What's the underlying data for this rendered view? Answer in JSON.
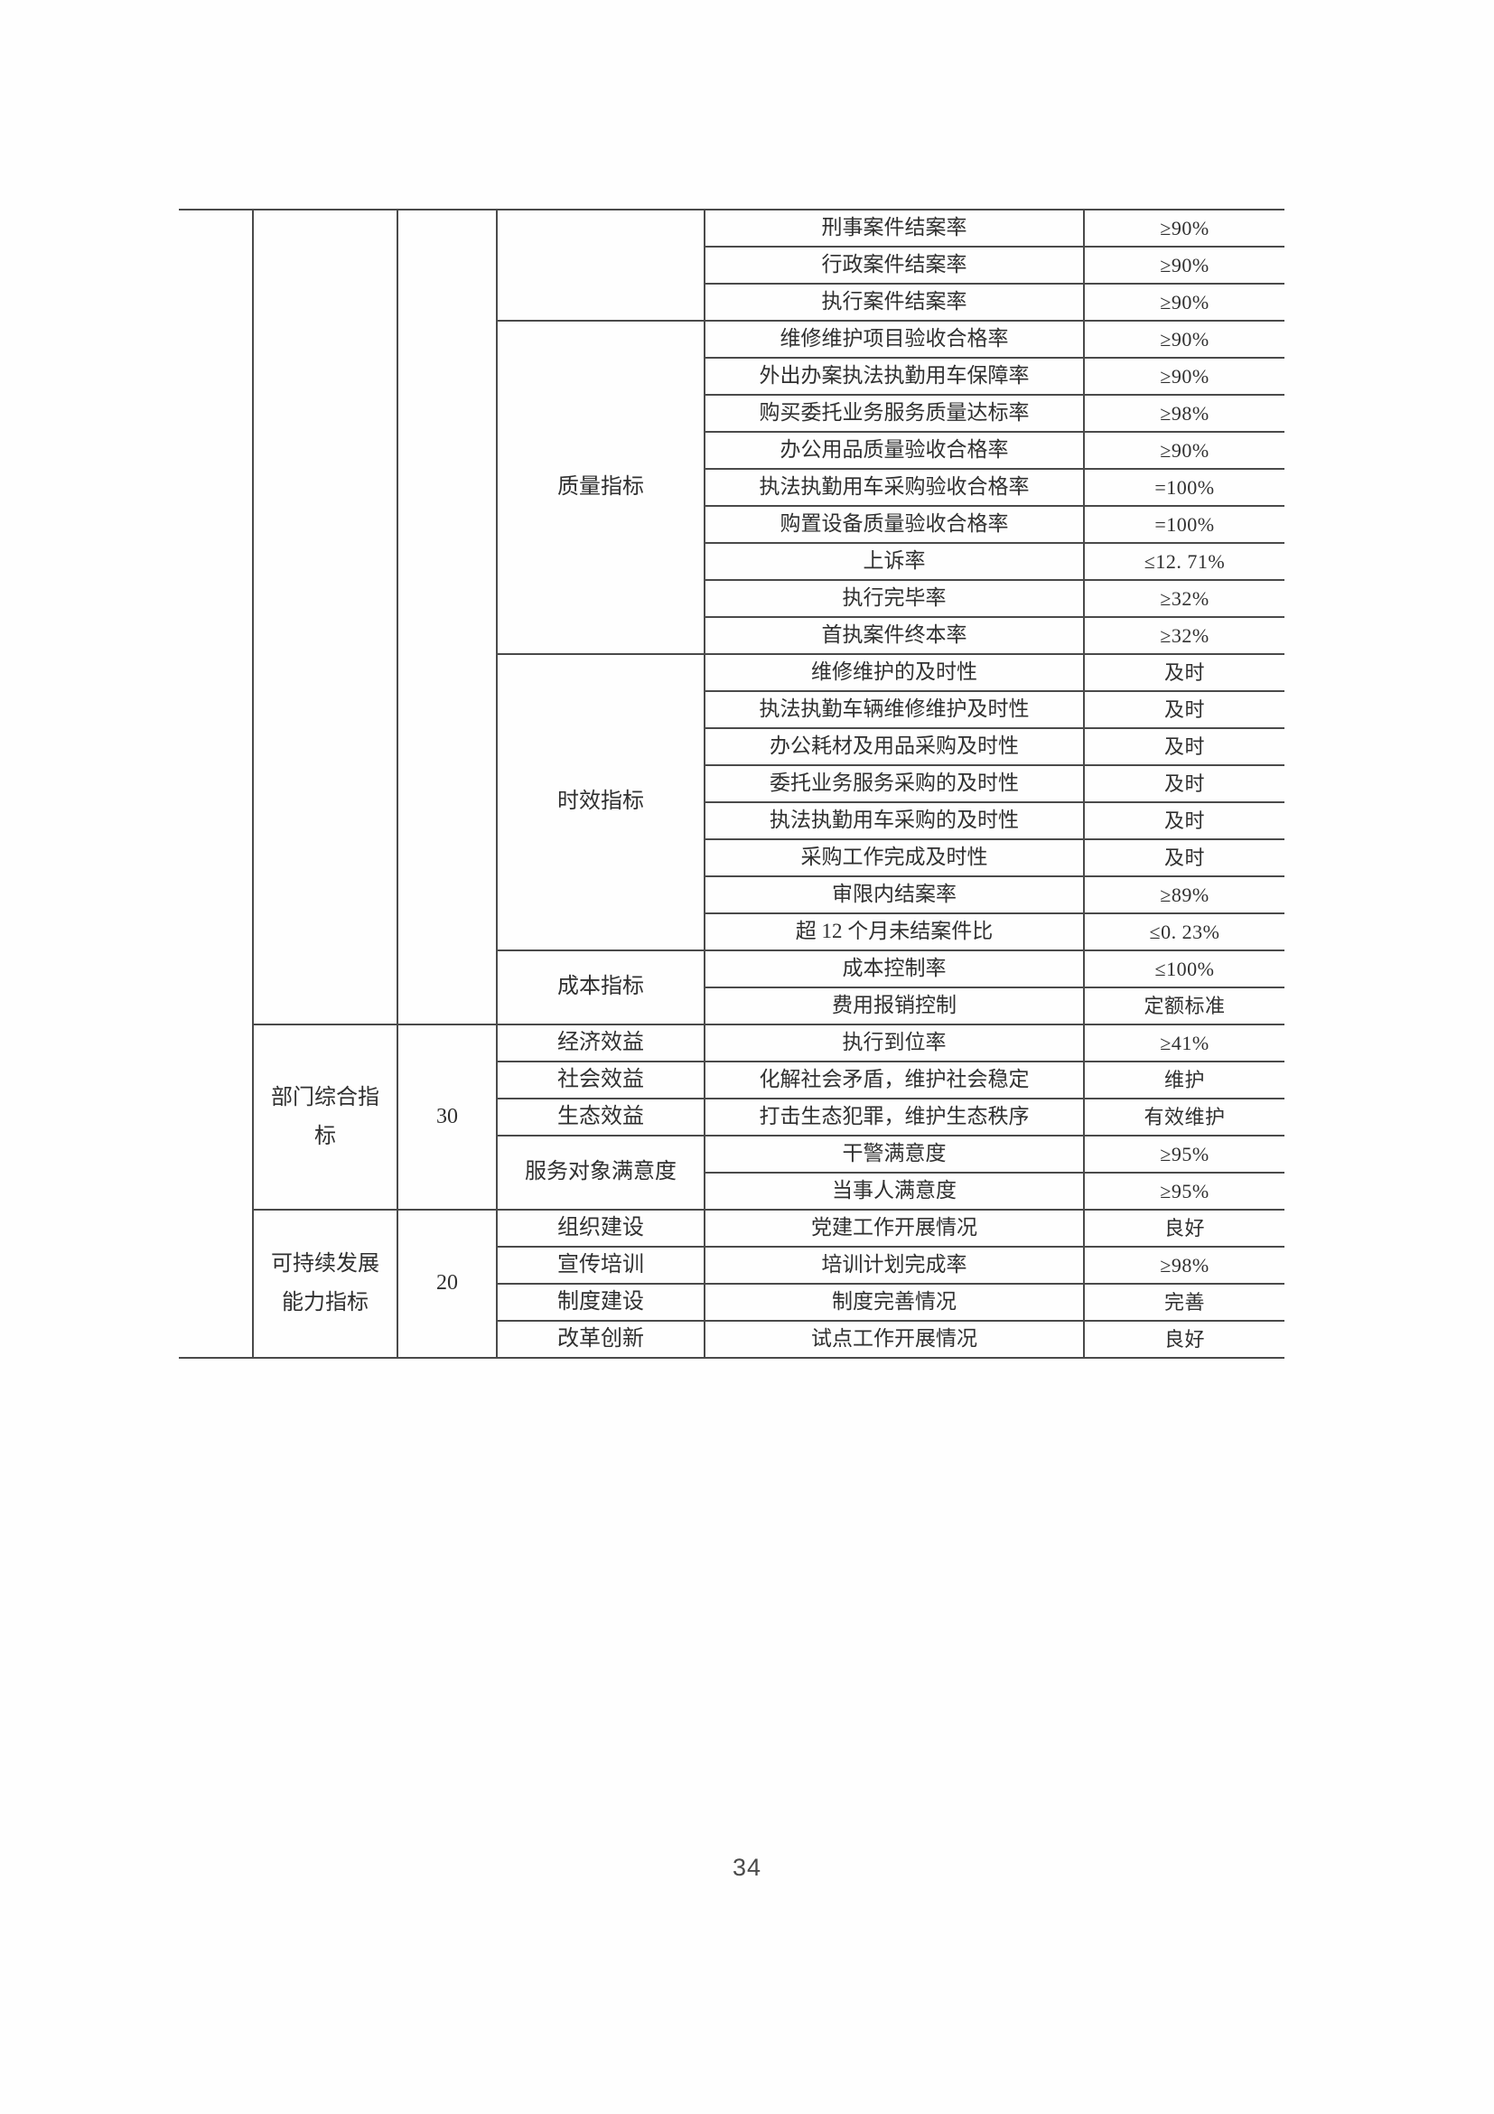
{
  "page": {
    "number": "34"
  },
  "colors": {
    "paper": "#fefefe",
    "grid_line": "#4a4a4a",
    "text": "#303030"
  },
  "table": {
    "description_rows_note": "each row lists only cells starting in that row; col: 0=empty continuation column, 1=first-level indicator, 2=weight score, 3=second-level indicator, 4=third-level indicator, 5=indicator value",
    "rows": [
      [
        {
          "col": 0,
          "rs": 31,
          "text": ""
        },
        {
          "col": 1,
          "rs": 22,
          "text": ""
        },
        {
          "col": 2,
          "rs": 22,
          "text": ""
        },
        {
          "col": 3,
          "rs": 3,
          "text": ""
        },
        {
          "col": 4,
          "text": "刑事案件结案率"
        },
        {
          "col": 5,
          "text": "≥90%"
        }
      ],
      [
        {
          "col": 4,
          "text": "行政案件结案率"
        },
        {
          "col": 5,
          "text": "≥90%"
        }
      ],
      [
        {
          "col": 4,
          "text": "执行案件结案率"
        },
        {
          "col": 5,
          "text": "≥90%"
        }
      ],
      [
        {
          "col": 3,
          "rs": 9,
          "text": "质量指标"
        },
        {
          "col": 4,
          "text": "维修维护项目验收合格率"
        },
        {
          "col": 5,
          "text": "≥90%"
        }
      ],
      [
        {
          "col": 4,
          "text": "外出办案执法执勤用车保障率"
        },
        {
          "col": 5,
          "text": "≥90%"
        }
      ],
      [
        {
          "col": 4,
          "text": "购买委托业务服务质量达标率"
        },
        {
          "col": 5,
          "text": "≥98%"
        }
      ],
      [
        {
          "col": 4,
          "text": "办公用品质量验收合格率"
        },
        {
          "col": 5,
          "text": "≥90%"
        }
      ],
      [
        {
          "col": 4,
          "text": "执法执勤用车采购验收合格率"
        },
        {
          "col": 5,
          "text": "=100%"
        }
      ],
      [
        {
          "col": 4,
          "text": "购置设备质量验收合格率"
        },
        {
          "col": 5,
          "text": "=100%"
        }
      ],
      [
        {
          "col": 4,
          "text": "上诉率"
        },
        {
          "col": 5,
          "text": "≤12. 71%"
        }
      ],
      [
        {
          "col": 4,
          "text": "执行完毕率"
        },
        {
          "col": 5,
          "text": "≥32%"
        }
      ],
      [
        {
          "col": 4,
          "text": "首执案件终本率"
        },
        {
          "col": 5,
          "text": "≥32%"
        }
      ],
      [
        {
          "col": 3,
          "rs": 8,
          "text": "时效指标"
        },
        {
          "col": 4,
          "text": "维修维护的及时性"
        },
        {
          "col": 5,
          "text": "及时"
        }
      ],
      [
        {
          "col": 4,
          "text": "执法执勤车辆维修维护及时性"
        },
        {
          "col": 5,
          "text": "及时"
        }
      ],
      [
        {
          "col": 4,
          "text": "办公耗材及用品采购及时性"
        },
        {
          "col": 5,
          "text": "及时"
        }
      ],
      [
        {
          "col": 4,
          "text": "委托业务服务采购的及时性"
        },
        {
          "col": 5,
          "text": "及时"
        }
      ],
      [
        {
          "col": 4,
          "text": "执法执勤用车采购的及时性"
        },
        {
          "col": 5,
          "text": "及时"
        }
      ],
      [
        {
          "col": 4,
          "text": "采购工作完成及时性"
        },
        {
          "col": 5,
          "text": "及时"
        }
      ],
      [
        {
          "col": 4,
          "text": "审限内结案率"
        },
        {
          "col": 5,
          "text": "≥89%"
        }
      ],
      [
        {
          "col": 4,
          "text": "超 12 个月未结案件比"
        },
        {
          "col": 5,
          "text": "≤0. 23%"
        }
      ],
      [
        {
          "col": 3,
          "rs": 2,
          "text": "成本指标"
        },
        {
          "col": 4,
          "text": "成本控制率"
        },
        {
          "col": 5,
          "text": "≤100%"
        }
      ],
      [
        {
          "col": 4,
          "text": "费用报销控制"
        },
        {
          "col": 5,
          "text": "定额标准"
        }
      ],
      [
        {
          "col": 1,
          "rs": 5,
          "text": "部门综合指标"
        },
        {
          "col": 2,
          "rs": 5,
          "text": "30"
        },
        {
          "col": 3,
          "text": "经济效益"
        },
        {
          "col": 4,
          "text": "执行到位率"
        },
        {
          "col": 5,
          "text": "≥41%"
        }
      ],
      [
        {
          "col": 3,
          "text": "社会效益"
        },
        {
          "col": 4,
          "text": "化解社会矛盾，维护社会稳定"
        },
        {
          "col": 5,
          "text": "维护"
        }
      ],
      [
        {
          "col": 3,
          "text": "生态效益"
        },
        {
          "col": 4,
          "text": "打击生态犯罪，维护生态秩序"
        },
        {
          "col": 5,
          "text": "有效维护"
        }
      ],
      [
        {
          "col": 3,
          "rs": 2,
          "text": "服务对象满意度"
        },
        {
          "col": 4,
          "text": "干警满意度"
        },
        {
          "col": 5,
          "text": "≥95%"
        }
      ],
      [
        {
          "col": 4,
          "text": "当事人满意度"
        },
        {
          "col": 5,
          "text": "≥95%"
        }
      ],
      [
        {
          "col": 1,
          "rs": 4,
          "text": "可持续发展能力指标"
        },
        {
          "col": 2,
          "rs": 4,
          "text": "20"
        },
        {
          "col": 3,
          "text": "组织建设"
        },
        {
          "col": 4,
          "text": "党建工作开展情况"
        },
        {
          "col": 5,
          "text": "良好"
        }
      ],
      [
        {
          "col": 3,
          "text": "宣传培训"
        },
        {
          "col": 4,
          "text": "培训计划完成率"
        },
        {
          "col": 5,
          "text": "≥98%"
        }
      ],
      [
        {
          "col": 3,
          "text": "制度建设"
        },
        {
          "col": 4,
          "text": "制度完善情况"
        },
        {
          "col": 5,
          "text": "完善"
        }
      ],
      [
        {
          "col": 3,
          "text": "改革创新"
        },
        {
          "col": 4,
          "text": "试点工作开展情况"
        },
        {
          "col": 5,
          "text": "良好"
        }
      ]
    ]
  }
}
